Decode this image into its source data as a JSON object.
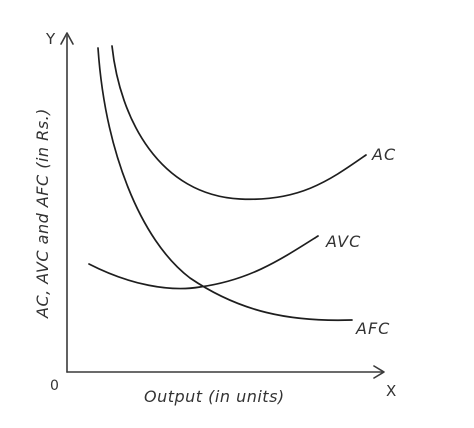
{
  "axes": {
    "y_letter": "Y",
    "x_letter": "X",
    "origin": "0",
    "x_title": "Output (in units)",
    "y_title": "AC, AVC and AFC (in Rs.)"
  },
  "curves": {
    "ac": {
      "label": "AC"
    },
    "avc": {
      "label": "AVC"
    },
    "afc": {
      "label": "AFC"
    }
  },
  "colors": {
    "ink": "#1e1e1e",
    "text": "#333333",
    "background": "#ffffff"
  }
}
